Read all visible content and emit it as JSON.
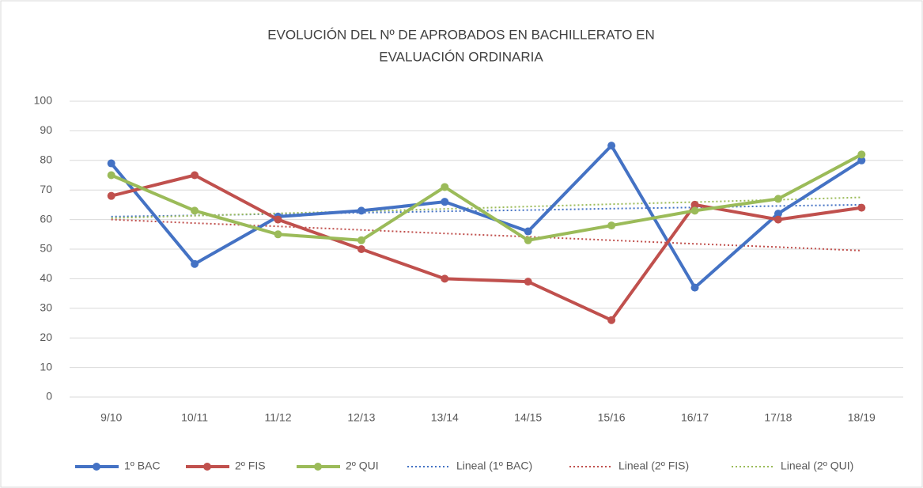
{
  "chart_data": {
    "type": "line",
    "title": [
      "EVOLUCIÓN DEL Nº DE APROBADOS EN BACHILLERATO EN",
      "EVALUACIÓN ORDINARIA"
    ],
    "categories": [
      "9/10",
      "10/11",
      "11/12",
      "12/13",
      "13/14",
      "14/15",
      "15/16",
      "16/17",
      "17/18",
      "18/19"
    ],
    "series": [
      {
        "name": "1º BAC",
        "color": "#4472c4",
        "values": [
          79,
          45,
          61,
          63,
          66,
          56,
          85,
          37,
          62,
          80
        ]
      },
      {
        "name": "2º FIS",
        "color": "#c0504d",
        "values": [
          68,
          75,
          60,
          50,
          40,
          39,
          26,
          65,
          60,
          64
        ]
      },
      {
        "name": "2º QUI",
        "color": "#9bbb59",
        "values": [
          75,
          63,
          55,
          53,
          71,
          53,
          58,
          63,
          67,
          82
        ]
      },
      {
        "name": "Lineal (1º BAC)",
        "color": "#4472c4",
        "dotted": true,
        "values": [
          61,
          61.4,
          61.9,
          62.3,
          62.8,
          63.2,
          63.7,
          64.1,
          64.6,
          65
        ]
      },
      {
        "name": "Lineal (2º FIS)",
        "color": "#c0504d",
        "dotted": true,
        "values": [
          60,
          58.8,
          57.7,
          56.5,
          55.3,
          54.2,
          53,
          51.8,
          50.7,
          49.5
        ]
      },
      {
        "name": "Lineal (2º QUI)",
        "color": "#9bbb59",
        "dotted": true,
        "values": [
          60.5,
          61.3,
          62.1,
          62.8,
          63.6,
          64.4,
          65.2,
          65.9,
          66.7,
          67.5
        ]
      }
    ],
    "ylim": [
      0,
      100
    ],
    "yticks": [
      0,
      10,
      20,
      30,
      40,
      50,
      60,
      70,
      80,
      90,
      100
    ],
    "grid": true,
    "legend": "bottom"
  }
}
